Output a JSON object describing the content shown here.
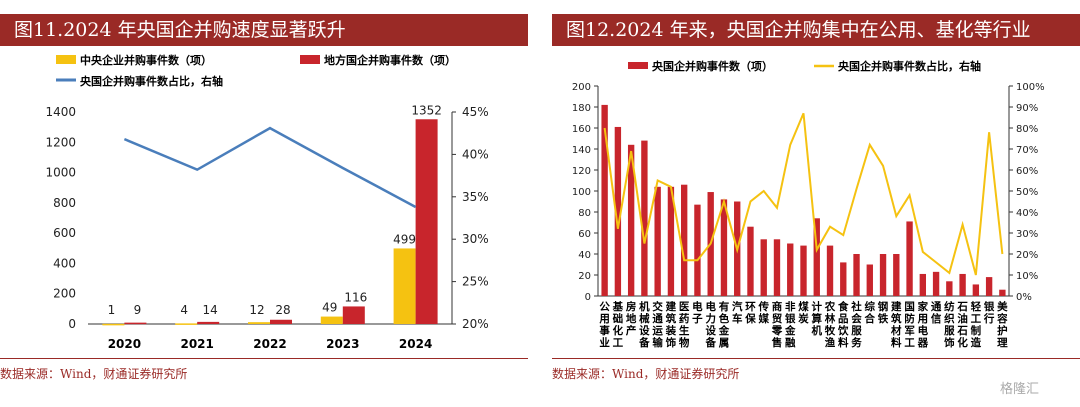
{
  "left": {
    "title": "图11.2024 年央国企并购速度显著跃升",
    "source": "数据来源：Wind，财通证券研究所",
    "chart_data": {
      "type": "bar",
      "categories": [
        "2020",
        "2021",
        "2022",
        "2023",
        "2024"
      ],
      "series": [
        {
          "name": "中央企业并购事件数（项）",
          "type": "bar",
          "color": "#f5c211",
          "axis": "left",
          "values": [
            1,
            4,
            12,
            49,
            499
          ]
        },
        {
          "name": "地方国企并购事件数（项）",
          "type": "bar",
          "color": "#c8252c",
          "axis": "left",
          "values": [
            9,
            14,
            28,
            116,
            1352
          ]
        },
        {
          "name": "央国企并购事件数占比，右轴",
          "type": "line",
          "color": "#4a7ebb",
          "axis": "right",
          "values": [
            41.8,
            38.2,
            43.1,
            38.4,
            33.8
          ]
        }
      ],
      "ylim": [
        0,
        1400
      ],
      "yticks": [
        0,
        200,
        400,
        600,
        800,
        1000,
        1200,
        1400
      ],
      "y2lim": [
        20,
        45
      ],
      "y2ticks": [
        "20%",
        "25%",
        "30%",
        "35%",
        "40%",
        "45%"
      ],
      "legend": "top",
      "grid": false
    }
  },
  "right": {
    "title": "图12.2024 年来，央国企并购集中在公用、基化等行业",
    "source": "数据来源：Wind，财通证券研究所",
    "chart_data": {
      "type": "bar",
      "categories": [
        "公用事业",
        "基础化工",
        "房地产",
        "机械设备",
        "交通运输",
        "建筑装饰",
        "医药生物",
        "电子",
        "电力设备",
        "有色金属",
        "汽车",
        "环保",
        "传媒",
        "商贸零售",
        "非银金融",
        "煤炭",
        "计算机",
        "农林牧渔",
        "食品饮料",
        "社会服务",
        "综合",
        "钢铁",
        "建筑材料",
        "国防军工",
        "家用电器",
        "通信",
        "纺织服饰",
        "石油石化",
        "轻工制造",
        "银行",
        "美容护理"
      ],
      "series": [
        {
          "name": "央国企并购事件数（项）",
          "type": "bar",
          "color": "#c8252c",
          "axis": "left",
          "values": [
            182,
            161,
            144,
            148,
            104,
            104,
            106,
            87,
            99,
            92,
            90,
            66,
            54,
            54,
            50,
            48,
            74,
            48,
            32,
            40,
            30,
            40,
            40,
            71,
            21,
            23,
            14,
            21,
            11,
            18,
            6
          ]
        },
        {
          "name": "央国企并购事件数占比，右轴",
          "type": "line",
          "color": "#f5c211",
          "axis": "right",
          "values": [
            80,
            32,
            69,
            25,
            55,
            52,
            17,
            17,
            25,
            45,
            22,
            45,
            50,
            42,
            72,
            87,
            22,
            33,
            29,
            51,
            72,
            62,
            38,
            48,
            21,
            16,
            11,
            34,
            10,
            78,
            20
          ]
        }
      ],
      "ylim": [
        0,
        200
      ],
      "yticks": [
        0,
        20,
        40,
        60,
        80,
        100,
        120,
        140,
        160,
        180,
        200
      ],
      "y2lim": [
        0,
        100
      ],
      "y2ticks": [
        "0%",
        "10%",
        "20%",
        "30%",
        "40%",
        "50%",
        "60%",
        "70%",
        "80%",
        "90%",
        "100%"
      ],
      "legend": "top",
      "grid": false
    }
  },
  "watermark": "格隆汇"
}
